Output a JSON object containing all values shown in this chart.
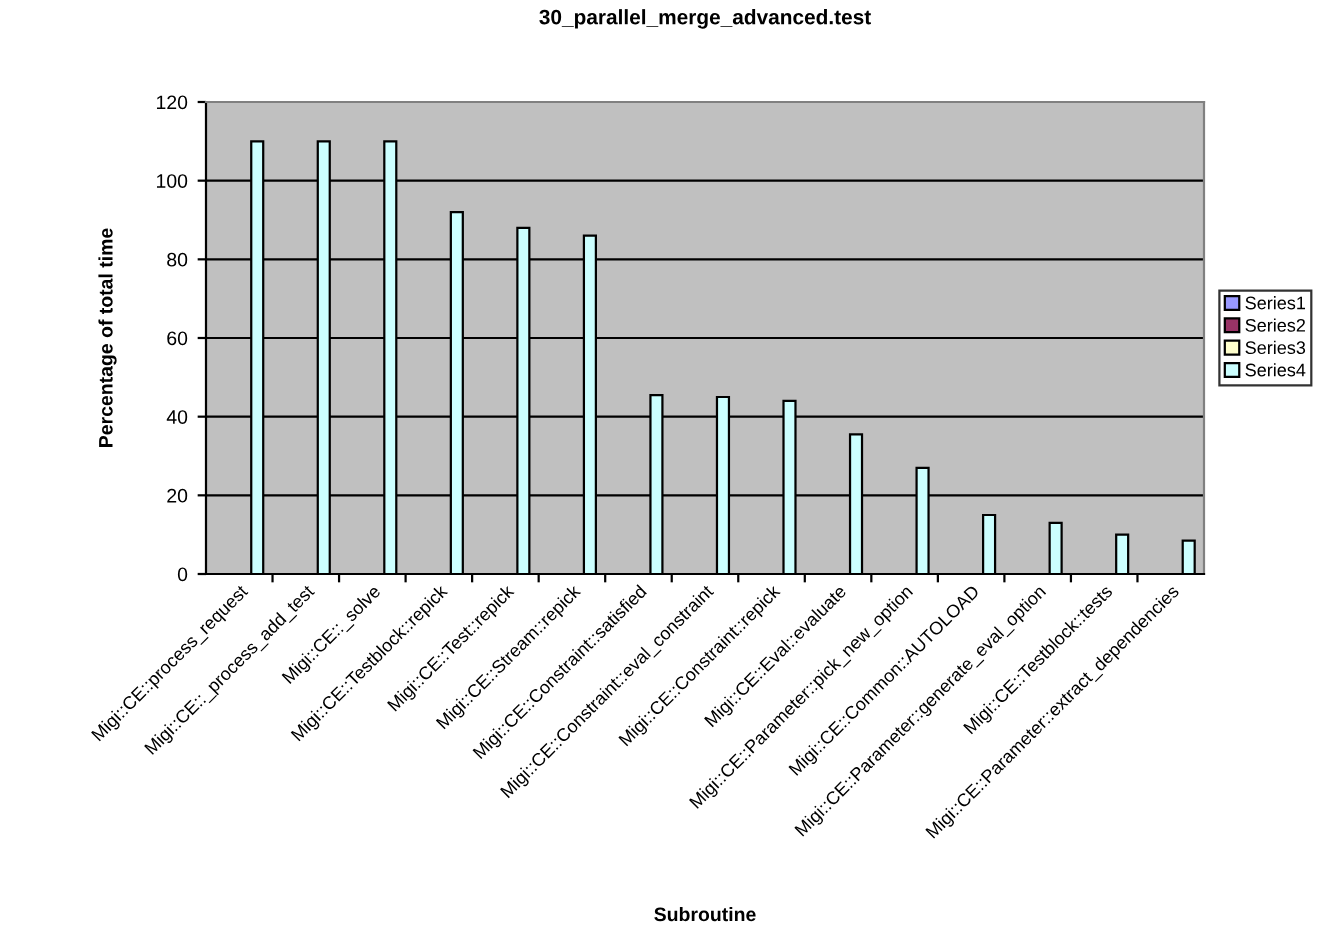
{
  "chart_data": {
    "type": "bar",
    "title": "30_parallel_merge_advanced.test",
    "xlabel": "Subroutine",
    "ylabel": "Percentage of total time",
    "categories": [
      "Migi::CE::process_request",
      "Migi::CE::_process_add_test",
      "Migi::CE::_solve",
      "Migi::CE::Testblock::repick",
      "Migi::CE::Test::repick",
      "Migi::CE::Stream::repick",
      "Migi::CE::Constraint::satisfied",
      "Migi::CE::Constraint::eval_constraint",
      "Migi::CE::Constraint::repick",
      "Migi::CE::Eval::evaluate",
      "Migi::CE::Parameter::pick_new_option",
      "Migi::CE::Common::AUTOLOAD",
      "Migi::CE::Parameter::generate_eval_option",
      "Migi::CE::Testblock::tests",
      "Migi::CE::Parameter::extract_dependencies"
    ],
    "series": [
      {
        "name": "Series1",
        "color": "#9999ff",
        "values": [
          null,
          null,
          null,
          null,
          null,
          null,
          null,
          null,
          null,
          null,
          null,
          null,
          null,
          null,
          null
        ]
      },
      {
        "name": "Series2",
        "color": "#993366",
        "values": [
          null,
          null,
          null,
          null,
          null,
          null,
          null,
          null,
          null,
          null,
          null,
          null,
          null,
          null,
          null
        ]
      },
      {
        "name": "Series3",
        "color": "#ffffcc",
        "values": [
          null,
          null,
          null,
          null,
          null,
          null,
          null,
          null,
          null,
          null,
          null,
          null,
          null,
          null,
          null
        ]
      },
      {
        "name": "Series4",
        "color": "#ccffff",
        "values": [
          110,
          110,
          110,
          92,
          88,
          86,
          45.5,
          45,
          44,
          35.5,
          27,
          15,
          13,
          10,
          8.5
        ]
      }
    ],
    "ylim": [
      0,
      120
    ],
    "yticks": [
      0,
      20,
      40,
      60,
      80,
      100,
      120
    ],
    "grid": "y",
    "legend": "right"
  }
}
